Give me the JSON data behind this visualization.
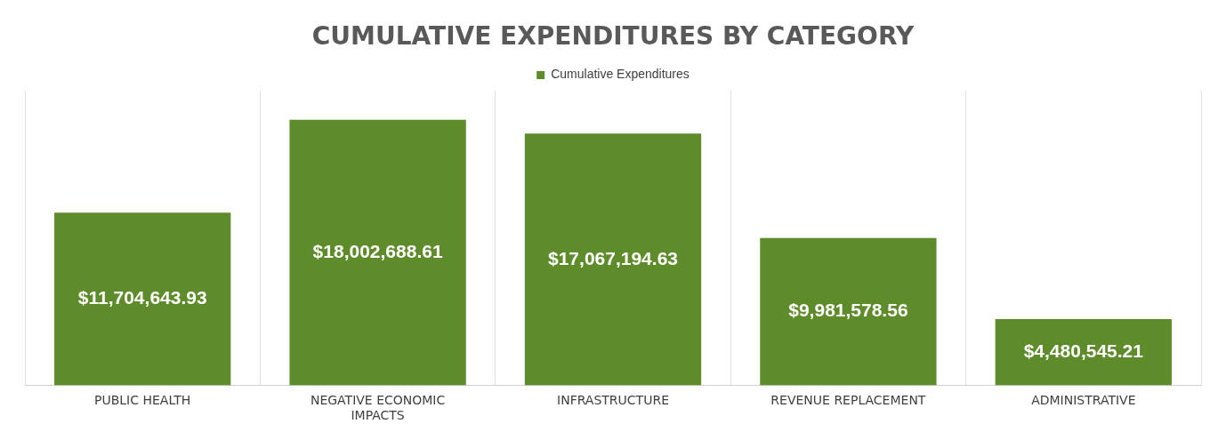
{
  "chart_data": {
    "type": "bar",
    "title": "CUMULATIVE EXPENDITURES BY CATEGORY",
    "categories": [
      "PUBLIC HEALTH",
      "NEGATIVE ECONOMIC IMPACTS",
      "INFRASTRUCTURE",
      "REVENUE REPLACEMENT",
      "ADMINISTRATIVE"
    ],
    "series": [
      {
        "name": "Cumulative Expenditures",
        "color": "#5e8c2a",
        "values": [
          11704643.93,
          18002688.61,
          17067194.63,
          9981578.56,
          4480545.21
        ],
        "value_labels": [
          "$11,704,643.93",
          "$18,002,688.61",
          "$17,067,194.63",
          "$9,981,578.56",
          "$4,480,545.21"
        ]
      }
    ],
    "grid": "x",
    "legend": "top"
  }
}
